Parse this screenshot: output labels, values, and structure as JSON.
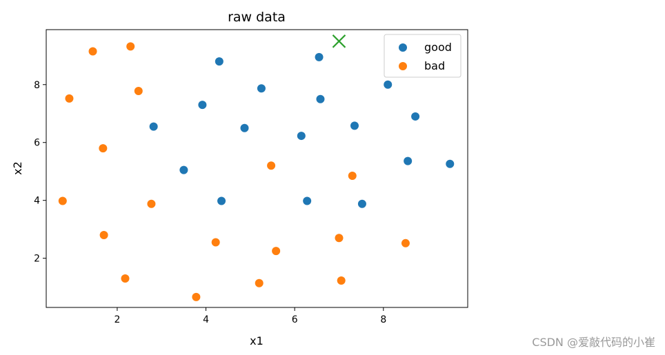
{
  "chart_data": {
    "type": "scatter",
    "title": "raw data",
    "xlabel": "x1",
    "ylabel": "x2",
    "xlim": [
      0.4,
      9.9
    ],
    "ylim": [
      0.3,
      9.9
    ],
    "xticks": [
      2,
      4,
      6,
      8
    ],
    "yticks": [
      2,
      4,
      6,
      8
    ],
    "grid": false,
    "legend_position": "top-right",
    "series": [
      {
        "name": "good",
        "color": "#1f77b4",
        "marker": "circle",
        "points": [
          [
            6.55,
            8.95
          ],
          [
            4.3,
            8.8
          ],
          [
            5.25,
            7.87
          ],
          [
            8.1,
            8.0
          ],
          [
            3.92,
            7.3
          ],
          [
            6.58,
            7.5
          ],
          [
            8.72,
            6.9
          ],
          [
            2.82,
            6.55
          ],
          [
            4.87,
            6.5
          ],
          [
            7.35,
            6.58
          ],
          [
            6.15,
            6.23
          ],
          [
            8.55,
            5.36
          ],
          [
            9.5,
            5.26
          ],
          [
            3.5,
            5.05
          ],
          [
            4.35,
            3.98
          ],
          [
            6.28,
            3.98
          ],
          [
            7.52,
            3.88
          ]
        ]
      },
      {
        "name": "bad",
        "color": "#ff7f0e",
        "marker": "circle",
        "points": [
          [
            1.45,
            9.15
          ],
          [
            2.3,
            9.32
          ],
          [
            0.92,
            7.52
          ],
          [
            2.48,
            7.78
          ],
          [
            1.68,
            5.8
          ],
          [
            5.47,
            5.2
          ],
          [
            7.3,
            4.85
          ],
          [
            0.77,
            3.98
          ],
          [
            2.77,
            3.88
          ],
          [
            1.7,
            2.8
          ],
          [
            4.22,
            2.55
          ],
          [
            5.58,
            2.25
          ],
          [
            7.0,
            2.7
          ],
          [
            8.5,
            2.52
          ],
          [
            2.18,
            1.3
          ],
          [
            5.2,
            1.14
          ],
          [
            7.05,
            1.23
          ],
          [
            3.78,
            0.66
          ]
        ]
      },
      {
        "color": "#2ca02c",
        "marker": "x",
        "points": [
          [
            7.0,
            9.5
          ]
        ]
      }
    ]
  },
  "watermark": "CSDN @爱敲代码的小崔"
}
